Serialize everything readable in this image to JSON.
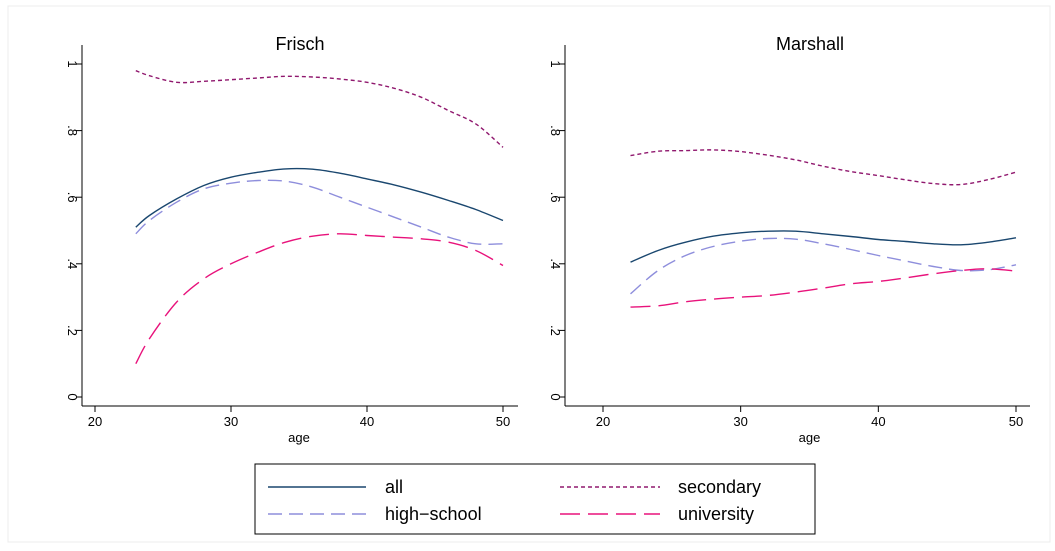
{
  "chart_data": [
    {
      "type": "line",
      "title": "Frisch",
      "xlabel": "age",
      "ylabel": "",
      "xlim": [
        20,
        50
      ],
      "ylim": [
        0,
        1
      ],
      "x_ticks": [
        20,
        30,
        40,
        50
      ],
      "x_tick_labels": [
        "20",
        "30",
        "40",
        "50"
      ],
      "y_ticks": [
        0,
        0.2,
        0.4,
        0.6,
        0.8,
        1
      ],
      "y_tick_labels": [
        "0",
        ".2",
        ".4",
        ".6",
        ".8",
        "1"
      ],
      "grid": false,
      "series": [
        {
          "name": "all",
          "color": "#1a476f",
          "dash": "solid",
          "x": [
            23,
            24,
            26,
            28,
            30,
            32,
            34,
            36,
            38,
            40,
            42,
            44,
            46,
            48,
            50
          ],
          "y": [
            0.51,
            0.545,
            0.595,
            0.635,
            0.66,
            0.675,
            0.685,
            0.684,
            0.672,
            0.655,
            0.637,
            0.615,
            0.59,
            0.563,
            0.53
          ]
        },
        {
          "name": "secondary",
          "color": "#90186e",
          "dash": "short",
          "x": [
            23,
            24,
            26,
            28,
            30,
            32,
            34,
            36,
            38,
            40,
            42,
            44,
            46,
            48,
            50
          ],
          "y": [
            0.98,
            0.965,
            0.945,
            0.948,
            0.953,
            0.958,
            0.963,
            0.961,
            0.955,
            0.945,
            0.927,
            0.9,
            0.86,
            0.82,
            0.75
          ]
        },
        {
          "name": "high-school",
          "color": "#8e8edc",
          "dash": "long",
          "x": [
            23,
            24,
            26,
            28,
            30,
            32,
            34,
            36,
            38,
            40,
            42,
            44,
            46,
            48,
            50
          ],
          "y": [
            0.49,
            0.53,
            0.585,
            0.625,
            0.642,
            0.65,
            0.648,
            0.63,
            0.6,
            0.57,
            0.54,
            0.51,
            0.48,
            0.46,
            0.46
          ]
        },
        {
          "name": "university",
          "color": "#e8127b",
          "dash": "longer",
          "x": [
            23,
            24,
            26,
            28,
            30,
            32,
            34,
            36,
            38,
            40,
            42,
            44,
            46,
            48,
            50
          ],
          "y": [
            0.1,
            0.175,
            0.285,
            0.355,
            0.4,
            0.435,
            0.465,
            0.483,
            0.49,
            0.485,
            0.48,
            0.475,
            0.465,
            0.44,
            0.395
          ]
        }
      ]
    },
    {
      "type": "line",
      "title": "Marshall",
      "xlabel": "age",
      "ylabel": "",
      "xlim": [
        20,
        50
      ],
      "ylim": [
        0,
        1
      ],
      "x_ticks": [
        20,
        30,
        40,
        50
      ],
      "x_tick_labels": [
        "20",
        "30",
        "40",
        "50"
      ],
      "y_ticks": [
        0,
        0.2,
        0.4,
        0.6,
        0.8,
        1
      ],
      "y_tick_labels": [
        "0",
        ".2",
        ".4",
        ".6",
        ".8",
        "1"
      ],
      "grid": false,
      "series": [
        {
          "name": "all",
          "color": "#1a476f",
          "dash": "solid",
          "x": [
            22,
            24,
            26,
            28,
            30,
            32,
            34,
            36,
            38,
            40,
            42,
            44,
            46,
            48,
            50
          ],
          "y": [
            0.405,
            0.44,
            0.465,
            0.483,
            0.493,
            0.498,
            0.498,
            0.49,
            0.482,
            0.473,
            0.467,
            0.46,
            0.457,
            0.465,
            0.478
          ]
        },
        {
          "name": "secondary",
          "color": "#90186e",
          "dash": "short",
          "x": [
            22,
            24,
            26,
            28,
            30,
            32,
            34,
            36,
            38,
            40,
            42,
            44,
            46,
            48,
            50
          ],
          "y": [
            0.725,
            0.738,
            0.74,
            0.742,
            0.737,
            0.726,
            0.712,
            0.693,
            0.677,
            0.665,
            0.652,
            0.641,
            0.638,
            0.653,
            0.675
          ]
        },
        {
          "name": "high-school",
          "color": "#8e8edc",
          "dash": "long",
          "x": [
            22,
            24,
            26,
            28,
            30,
            32,
            34,
            36,
            38,
            40,
            42,
            44,
            46,
            48,
            50
          ],
          "y": [
            0.31,
            0.38,
            0.425,
            0.452,
            0.468,
            0.476,
            0.474,
            0.46,
            0.443,
            0.425,
            0.408,
            0.392,
            0.38,
            0.382,
            0.397
          ]
        },
        {
          "name": "university",
          "color": "#e8127b",
          "dash": "longer",
          "x": [
            22,
            24,
            26,
            28,
            30,
            32,
            34,
            36,
            38,
            40,
            42,
            44,
            46,
            48,
            50
          ],
          "y": [
            0.27,
            0.274,
            0.286,
            0.294,
            0.3,
            0.305,
            0.315,
            0.327,
            0.34,
            0.347,
            0.358,
            0.37,
            0.38,
            0.385,
            0.378
          ]
        }
      ]
    }
  ],
  "legend": {
    "placement": "bottom-center",
    "entries": [
      {
        "label": "all",
        "color": "#1a476f",
        "dash": "solid"
      },
      {
        "label": "secondary",
        "color": "#90186e",
        "dash": "short"
      },
      {
        "label": "high−school",
        "color": "#8e8edc",
        "dash": "long"
      },
      {
        "label": "university",
        "color": "#e8127b",
        "dash": "longer"
      }
    ]
  }
}
